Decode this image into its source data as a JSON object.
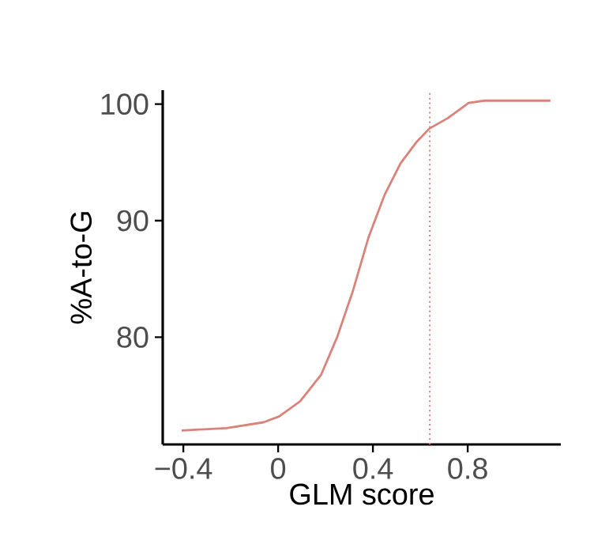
{
  "chart_data": {
    "type": "line",
    "xlabel": "GLM score",
    "ylabel": "%A-to-G",
    "x": [
      -0.407,
      -0.218,
      -0.062,
      0.004,
      0.093,
      0.182,
      0.249,
      0.316,
      0.382,
      0.449,
      0.516,
      0.582,
      0.638,
      0.716,
      0.804,
      0.871,
      1.149
    ],
    "series": [
      {
        "color": "#d9837a",
        "values": [
          72.0,
          72.2,
          72.7,
          73.2,
          74.5,
          76.8,
          80.0,
          84.0,
          88.6,
          92.2,
          94.9,
          96.7,
          97.9,
          98.8,
          100.1,
          100.3,
          100.3
        ]
      }
    ],
    "xlim": [
      -0.487,
      1.193
    ],
    "ylim": [
      70.8,
      101.2
    ],
    "xticks": [
      {
        "value": -0.4,
        "label": "−0.4"
      },
      0,
      0.4,
      0.8
    ],
    "yticks": [
      80,
      90,
      100
    ],
    "ref_lines": [
      {
        "axis": "x",
        "value": 0.64,
        "color": "#d9837a",
        "line_style": "dotted"
      }
    ],
    "grid": false,
    "marker": "none",
    "line_style": "solid"
  }
}
